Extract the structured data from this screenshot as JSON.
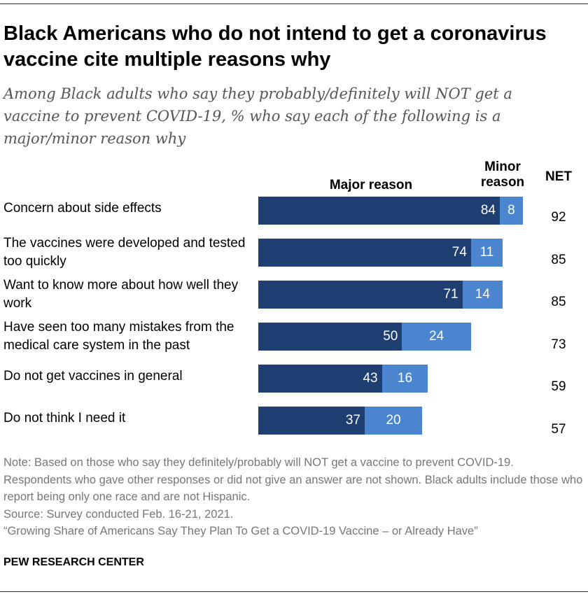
{
  "title": "Black Americans who do not intend to get a coronavirus vaccine cite multiple reasons why",
  "subtitle": "Among Black adults who say they probably/definitely will NOT get a vaccine to prevent COVID-19, % who say each of the following is a major/minor reason why",
  "chart_data": {
    "type": "bar",
    "orientation": "horizontal",
    "stacked": true,
    "column_headers": {
      "major": "Major reason",
      "minor": "Minor reason",
      "net": "NET"
    },
    "categories": [
      "Concern about side effects",
      "The vaccines were developed and tested too quickly",
      "Want to know more about how well they work",
      "Have seen too many mistakes from the medical care system in the past",
      "Do not get vaccines in general",
      "Do not think I need it"
    ],
    "series": [
      {
        "name": "Major reason",
        "color": "#1f3f73",
        "values": [
          84,
          74,
          71,
          50,
          43,
          37
        ]
      },
      {
        "name": "Minor reason",
        "color": "#4b84cf",
        "values": [
          8,
          11,
          14,
          24,
          16,
          20
        ]
      }
    ],
    "net": [
      92,
      85,
      85,
      73,
      59,
      57
    ]
  },
  "notes": [
    "Note: Based on those who say they definitely/probably will NOT get a vaccine to prevent COVID-19. Respondents who gave other responses or did not give an answer are not shown. Black adults include those who report being only one race and are not Hispanic.",
    "Source: Survey conducted Feb. 16-21, 2021.",
    "“Growing Share of Americans Say They Plan To Get a COVID-19 Vaccine – or Already Have”"
  ],
  "brand": "PEW RESEARCH CENTER"
}
